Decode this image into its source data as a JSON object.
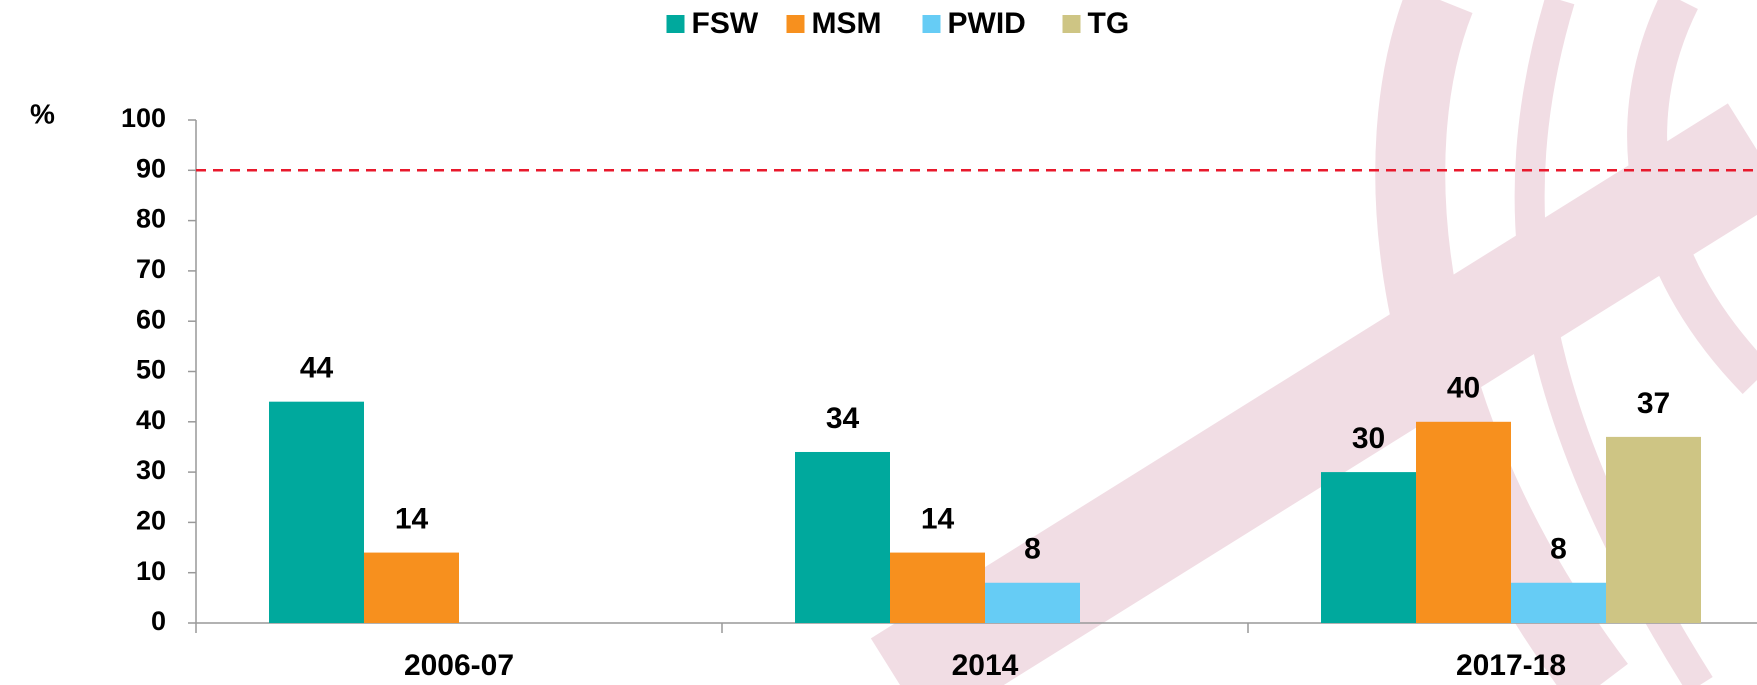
{
  "chart_data": {
    "type": "bar",
    "y_label": "%",
    "categories": [
      "2006-07",
      "2014",
      "2017-18"
    ],
    "series": [
      {
        "name": "FSW",
        "color": "#00a99d",
        "values": [
          44,
          34,
          30
        ]
      },
      {
        "name": "MSM",
        "color": "#f7901e",
        "values": [
          14,
          14,
          40
        ]
      },
      {
        "name": "PWID",
        "color": "#66ccf5",
        "values": [
          null,
          8,
          8
        ]
      },
      {
        "name": "TG",
        "color": "#cec584",
        "values": [
          null,
          null,
          37
        ]
      }
    ],
    "ylim": [
      0,
      100
    ],
    "yticks": [
      0,
      10,
      20,
      30,
      40,
      50,
      60,
      70,
      80,
      90,
      100
    ],
    "reference_line": {
      "value": 90,
      "color": "#e8192c"
    },
    "legend": "top"
  }
}
